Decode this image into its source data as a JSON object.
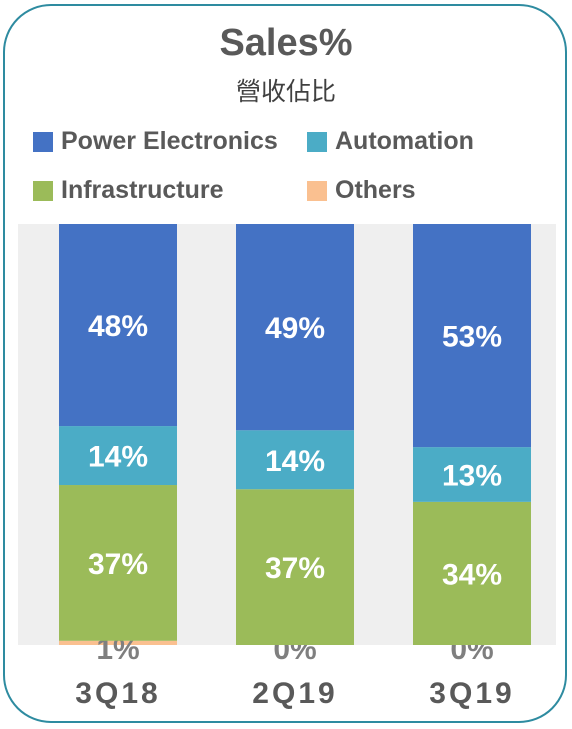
{
  "chart_data": {
    "type": "bar",
    "stacked": true,
    "title": "Sales%",
    "subtitle": "營收佔比",
    "categories": [
      "3Q18",
      "2Q19",
      "3Q19"
    ],
    "series": [
      {
        "name": "Power Electronics",
        "color": "#4472c4",
        "values": [
          48,
          49,
          53
        ],
        "labels": [
          "48%",
          "49%",
          "53%"
        ]
      },
      {
        "name": "Automation",
        "color": "#4bacc6",
        "values": [
          14,
          14,
          13
        ],
        "labels": [
          "14%",
          "14%",
          "13%"
        ]
      },
      {
        "name": "Infrastructure",
        "color": "#9bbb59",
        "values": [
          37,
          37,
          34
        ],
        "labels": [
          "37%",
          "37%",
          "34%"
        ]
      },
      {
        "name": "Others",
        "color": "#fac090",
        "values": [
          1,
          0,
          0
        ],
        "labels": [
          "1%",
          "0%",
          "0%"
        ]
      }
    ],
    "ylim": [
      0,
      100
    ],
    "legend": "top",
    "grid": false,
    "plot_background": "#efefef"
  }
}
